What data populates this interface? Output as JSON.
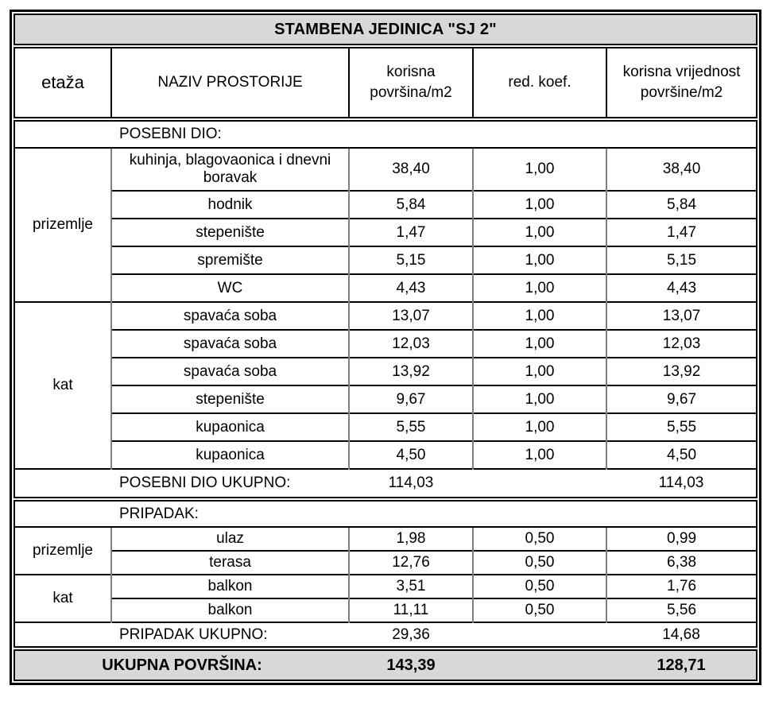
{
  "title": "STAMBENA JEDINICA \"SJ 2\"",
  "columns": [
    "etaža",
    "NAZIV PROSTORIJE",
    "korisna\npovršina/m2",
    "red. koef.",
    "korisna vrijednost\npovršine/m2"
  ],
  "sections": [
    {
      "label": "POSEBNI DIO:",
      "groups": [
        {
          "floor": "prizemlje",
          "rows": [
            {
              "name": "kuhinja, blagovaonica i dnevni boravak",
              "area": "38,40",
              "koef": "1,00",
              "value": "38,40"
            },
            {
              "name": "hodnik",
              "area": "5,84",
              "koef": "1,00",
              "value": "5,84"
            },
            {
              "name": "stepenište",
              "area": "1,47",
              "koef": "1,00",
              "value": "1,47"
            },
            {
              "name": "spremište",
              "area": "5,15",
              "koef": "1,00",
              "value": "5,15"
            },
            {
              "name": "WC",
              "area": "4,43",
              "koef": "1,00",
              "value": "4,43"
            }
          ]
        },
        {
          "floor": "kat",
          "rows": [
            {
              "name": "spavaća soba",
              "area": "13,07",
              "koef": "1,00",
              "value": "13,07"
            },
            {
              "name": "spavaća soba",
              "area": "12,03",
              "koef": "1,00",
              "value": "12,03"
            },
            {
              "name": "spavaća soba",
              "area": "13,92",
              "koef": "1,00",
              "value": "13,92"
            },
            {
              "name": "stepenište",
              "area": "9,67",
              "koef": "1,00",
              "value": "9,67"
            },
            {
              "name": "kupaonica",
              "area": "5,55",
              "koef": "1,00",
              "value": "5,55"
            },
            {
              "name": "kupaonica",
              "area": "4,50",
              "koef": "1,00",
              "value": "4,50"
            }
          ]
        }
      ],
      "total_label": "POSEBNI DIO UKUPNO:",
      "total_area": "114,03",
      "total_value": "114,03"
    },
    {
      "label": "PRIPADAK:",
      "groups": [
        {
          "floor": "prizemlje",
          "rows": [
            {
              "name": "ulaz",
              "area": "1,98",
              "koef": "0,50",
              "value": "0,99"
            },
            {
              "name": "terasa",
              "area": "12,76",
              "koef": "0,50",
              "value": "6,38"
            }
          ]
        },
        {
          "floor": "kat",
          "rows": [
            {
              "name": "balkon",
              "area": "3,51",
              "koef": "0,50",
              "value": "1,76"
            },
            {
              "name": "balkon",
              "area": "11,11",
              "koef": "0,50",
              "value": "5,56"
            }
          ]
        }
      ],
      "total_label": "PRIPADAK UKUPNO:",
      "total_area": "29,36",
      "total_value": "14,68"
    }
  ],
  "grand_total": {
    "label": "UKUPNA POVRŠINA:",
    "area": "143,39",
    "value": "128,71"
  },
  "colors": {
    "band_gray": "#d8d8d8",
    "line_black": "#000000",
    "grid_gray": "#808080"
  }
}
